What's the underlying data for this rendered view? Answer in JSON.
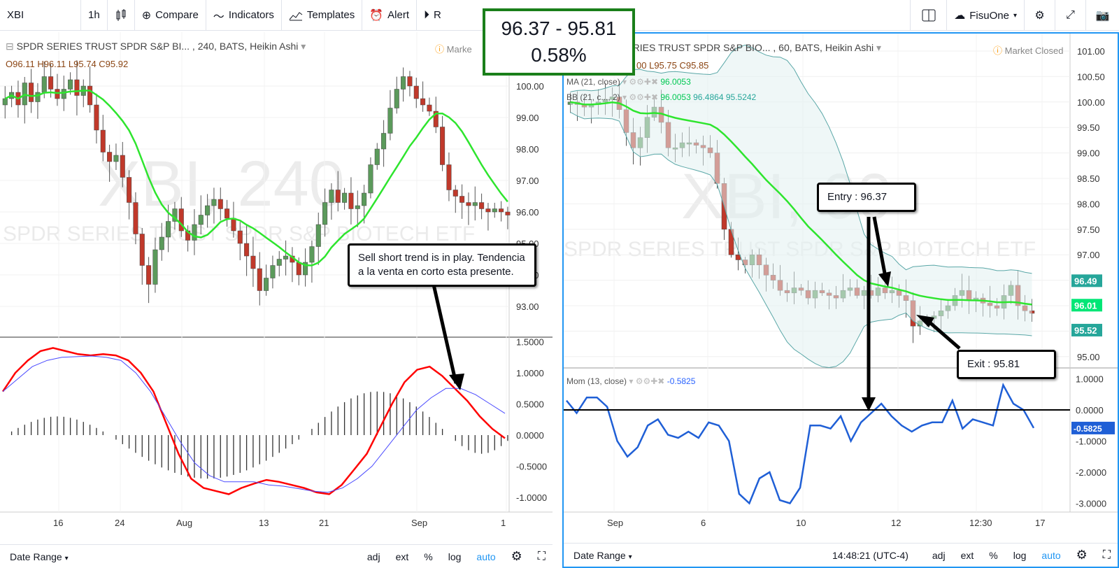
{
  "toolbar": {
    "symbol": "XBI",
    "interval": "1h",
    "compare": "Compare",
    "indicators": "Indicators",
    "templates": "Templates",
    "alert": "Alert",
    "replay_partial": "R",
    "user": "FisuOne"
  },
  "price_change_box": {
    "range": "96.37 - 95.81",
    "percent": "0.58%"
  },
  "left_chart": {
    "title": "SPDR SERIES TRUST SPDR S&P BI... , 240, BATS, Heikin Ashi",
    "market_status": "Marke",
    "ohlc": {
      "o": "O96.11",
      "h": "H96.11",
      "l": "L95.74",
      "c": "C95.92"
    },
    "watermark": "XBI, 240",
    "watermark_sub": "SPDR SERIES TRUST SPDR S&P BIOTECH ETF",
    "price_axis": [
      "100.00",
      "99.00",
      "98.00",
      "97.00",
      "96.00",
      "95.00",
      "94.00",
      "93.00"
    ],
    "macd_axis": [
      "1.5000",
      "1.0000",
      "0.5000",
      "0.0000",
      "-0.5000",
      "-1.0000"
    ],
    "x_labels": [
      "16",
      "24",
      "Aug",
      "13",
      "21",
      "Sep",
      "1"
    ],
    "callout": "Sell short trend is in play. Tendencia a la venta en corto esta presente.",
    "bottom": {
      "date_range": "Date Range",
      "adj": "adj",
      "ext": "ext",
      "pct": "%",
      "log": "log",
      "auto": "auto"
    }
  },
  "right_chart": {
    "title": "SERIES TRUST SPDR S&P BIO... , 60, BATS, Heikin Ashi",
    "market_status": "Market Closed",
    "ohlc": {
      "h": "00",
      "l": "L95.75",
      "c": "C95.85"
    },
    "ma_label": "MA (21, close)",
    "ma_value": "96.0053",
    "bb_label": "BB (21, c..., 2)",
    "bb_values": [
      "96.0053",
      "96.4864",
      "95.5242"
    ],
    "watermark": "XBI, 60",
    "watermark_sub": "SPDR SERIES TRUST SPDR S&P BIOTECH ETF",
    "price_axis": [
      "101.00",
      "100.50",
      "100.00",
      "99.50",
      "99.00",
      "98.50",
      "98.00",
      "97.50",
      "97.00",
      "96.50",
      "96.00",
      "95.50",
      "95.00"
    ],
    "price_tags": [
      {
        "value": "96.49",
        "color": "#26a69a"
      },
      {
        "value": "96.01",
        "color": "#00e676"
      },
      {
        "value": "95.52",
        "color": "#26a69a"
      }
    ],
    "mom_label": "Mom (13, close)",
    "mom_value": "-0.5825",
    "mom_axis": [
      "1.0000",
      "0.0000",
      "-1.0000",
      "-2.0000",
      "-3.0000"
    ],
    "mom_tag": "-0.5825",
    "x_labels": [
      "Sep",
      "6",
      "10",
      "12",
      "12:30",
      "17"
    ],
    "entry_callout": "Entry : 96.37",
    "exit_callout": "Exit : 95.81",
    "bottom": {
      "date_range": "Date Range",
      "time": "14:48:21 (UTC-4)",
      "adj": "adj",
      "ext": "ext",
      "pct": "%",
      "log": "log",
      "auto": "auto"
    }
  },
  "colors": {
    "bull": "#5b9a5b",
    "bear": "#c0392b",
    "ma": "#2ee52e",
    "macd": "#ff0000",
    "signal": "#4a4aff",
    "mom": "#1f5fd6",
    "bb": "#5aa7a7"
  }
}
